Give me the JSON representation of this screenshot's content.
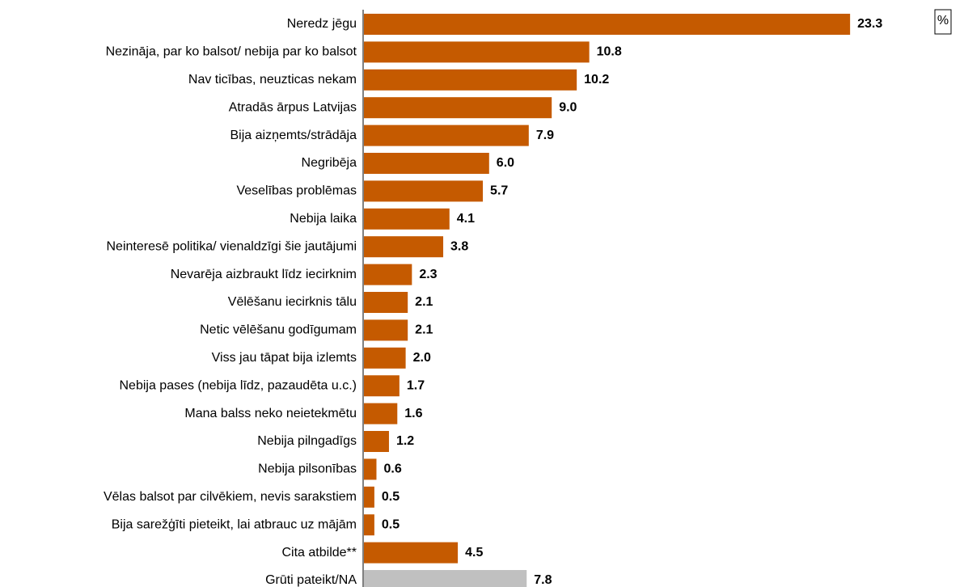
{
  "chart_data": {
    "type": "bar",
    "unit": "%",
    "categories": [
      "Neredz jēgu",
      "Nezināja, par ko balsot/ nebija par ko balsot",
      "Nav ticības, neuzticas nekam",
      "Atradās ārpus Latvijas",
      "Bija aizņemts/strādāja",
      "Negribēja",
      "Veselības problēmas",
      "Nebija laika",
      "Neinteresē politika/ vienaldzīgi šie jautājumi",
      "Nevarēja aizbraukt līdz iecirknim",
      "Vēlēšanu iecirknis tālu",
      "Netic vēlēšanu godīgumam",
      "Viss jau tāpat bija izlemts",
      "Nebija pases (nebija līdz, pazaudēta u.c.)",
      "Mana balss neko neietekmētu",
      "Nebija pilngadīgs",
      "Nebija pilsonības",
      "Vēlas balsot par cilvēkiem, nevis sarakstiem",
      "Bija sarežģīti pieteikt, lai atbrauc uz mājām",
      "Cita atbilde**",
      "Grūti pateikt/NA"
    ],
    "values": [
      23.3,
      10.8,
      10.2,
      9.0,
      7.9,
      6.0,
      5.7,
      4.1,
      3.8,
      2.3,
      2.1,
      2.1,
      2.0,
      1.7,
      1.6,
      1.2,
      0.6,
      0.5,
      0.5,
      4.5,
      7.8
    ],
    "value_labels": [
      "23.3",
      "10.8",
      "10.2",
      "9.0",
      "7.9",
      "6.0",
      "5.7",
      "4.1",
      "3.8",
      "2.3",
      "2.1",
      "2.1",
      "2.0",
      "1.7",
      "1.6",
      "1.2",
      "0.6",
      "0.5",
      "0.5",
      "4.5",
      "7.8"
    ],
    "colors": [
      "#c55a00",
      "#c55a00",
      "#c55a00",
      "#c55a00",
      "#c55a00",
      "#c55a00",
      "#c55a00",
      "#c55a00",
      "#c55a00",
      "#c55a00",
      "#c55a00",
      "#c55a00",
      "#c55a00",
      "#c55a00",
      "#c55a00",
      "#c55a00",
      "#c55a00",
      "#c55a00",
      "#c55a00",
      "#c55a00",
      "#c0c0c0"
    ]
  }
}
